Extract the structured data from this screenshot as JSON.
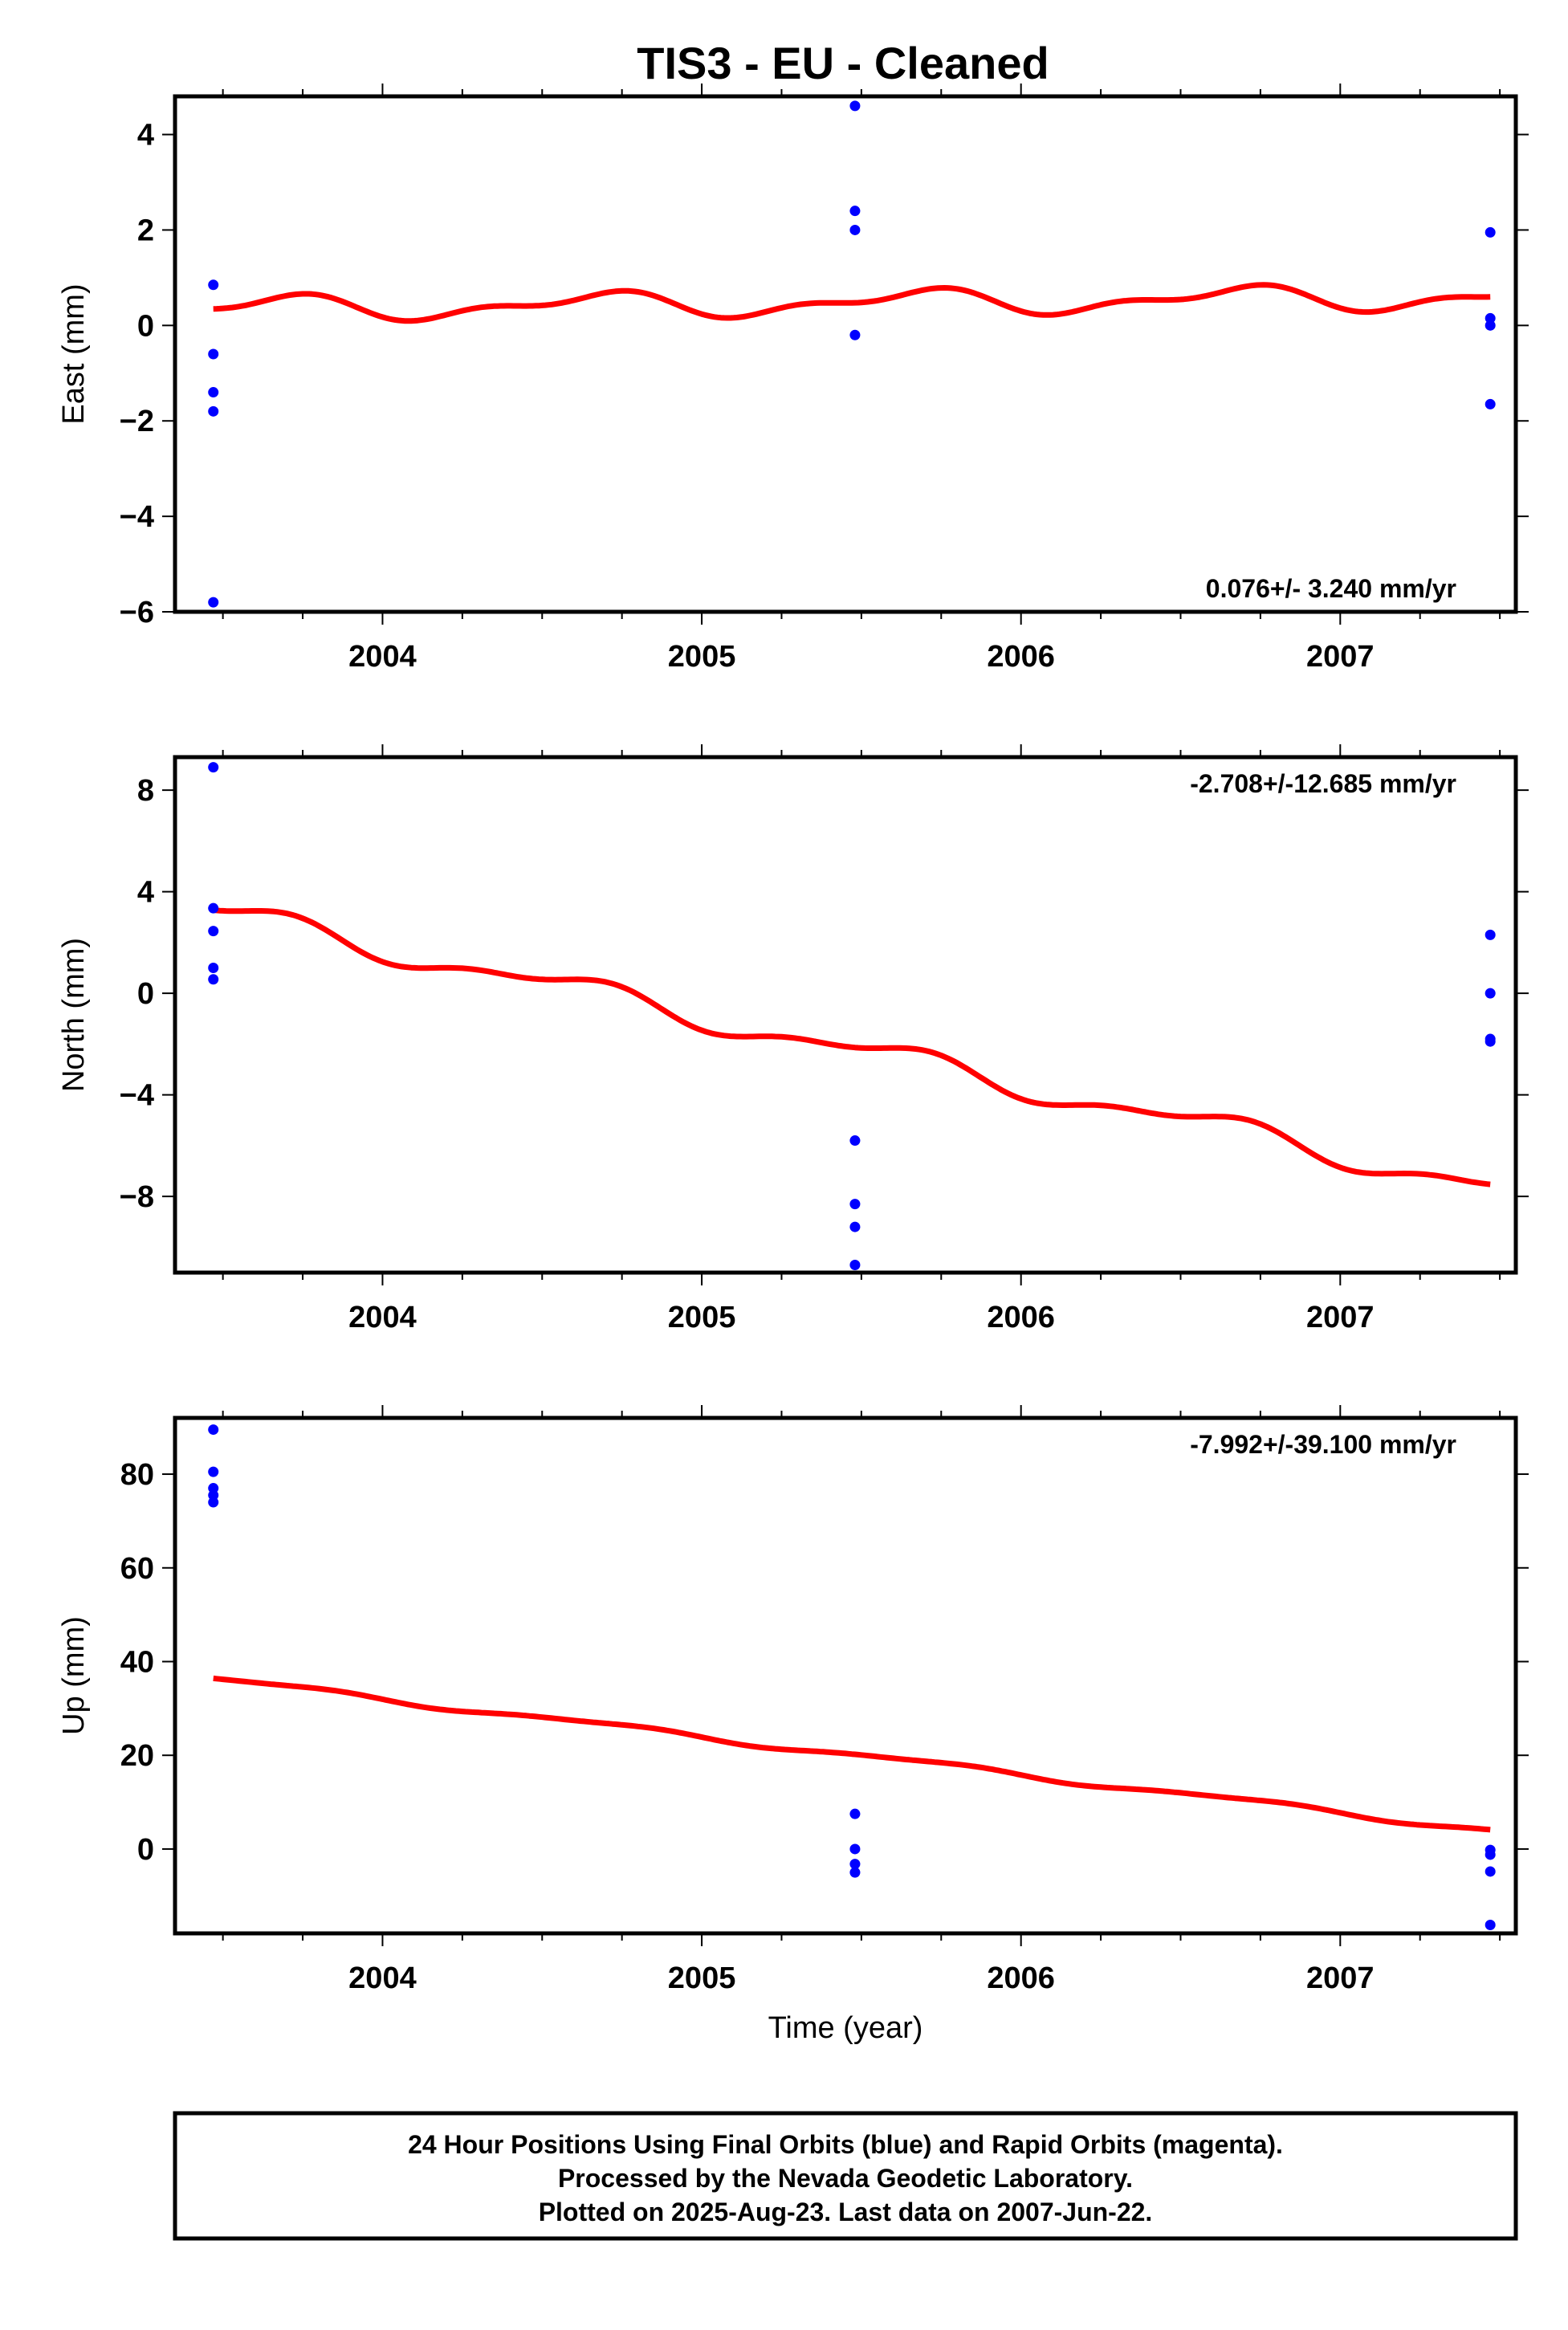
{
  "title": "TIS3  - EU - Cleaned",
  "colors": {
    "final_orbits": "#0000ff",
    "model_fit": "#ff0000",
    "frame": "#000000"
  },
  "chart_data": [
    {
      "type": "scatter",
      "panel": "east",
      "ylabel": "East (mm)",
      "xlabel": "",
      "rate_text": "0.076+/- 3.240 mm/yr",
      "rate_position": "bottom-right",
      "xlim": [
        2003.35,
        2007.55
      ],
      "ylim": [
        -6,
        4.8
      ],
      "yticks": [
        -6,
        -4,
        -2,
        0,
        2,
        4
      ],
      "yticklabels": [
        "−6",
        "−4",
        "−2",
        "0",
        "2",
        "4"
      ],
      "xticks": [
        2004,
        2005,
        2006,
        2007
      ],
      "xticklabels": [
        "2004",
        "2005",
        "2006",
        "2007"
      ],
      "series": [
        {
          "kind": "points",
          "color": "#0000ff",
          "x": [
            2003.47,
            2003.47,
            2003.47,
            2003.47,
            2003.47,
            2005.48,
            2005.48,
            2005.48,
            2005.48,
            2007.47,
            2007.47,
            2007.47,
            2007.47
          ],
          "y": [
            0.85,
            -0.6,
            -1.4,
            -1.8,
            -5.8,
            4.6,
            2.4,
            2.0,
            -0.2,
            1.95,
            0.15,
            0.0,
            -1.65
          ]
        },
        {
          "kind": "model",
          "color": "#ff0000",
          "model": {
            "t0": 2003.47,
            "t1": 2007.47,
            "start": 0.35,
            "end": 0.6,
            "ann": 0.22,
            "semi": 0.12,
            "ph1": 0.05,
            "ph2": 0.3
          }
        }
      ]
    },
    {
      "type": "scatter",
      "panel": "north",
      "ylabel": "North (mm)",
      "xlabel": "",
      "rate_text": "-2.708+/-12.685 mm/yr",
      "rate_position": "top-right",
      "xlim": [
        2003.35,
        2007.55
      ],
      "ylim": [
        -11,
        9.3
      ],
      "yticks": [
        -8,
        -4,
        0,
        4,
        8
      ],
      "yticklabels": [
        "−8",
        "−4",
        "0",
        "4",
        "8"
      ],
      "xticks": [
        2004,
        2005,
        2006,
        2007
      ],
      "xticklabels": [
        "2004",
        "2005",
        "2006",
        "2007"
      ],
      "series": [
        {
          "kind": "points",
          "color": "#0000ff",
          "x": [
            2003.47,
            2003.47,
            2003.47,
            2003.47,
            2003.47,
            2005.48,
            2005.48,
            2005.48,
            2005.48,
            2007.47,
            2007.47,
            2007.47,
            2007.47
          ],
          "y": [
            8.9,
            3.35,
            2.45,
            1.0,
            0.55,
            -5.8,
            -8.3,
            -9.2,
            -10.7,
            2.3,
            0.0,
            -1.8,
            -1.9
          ]
        },
        {
          "kind": "model",
          "color": "#ff0000",
          "model": {
            "t0": 2003.47,
            "t1": 2007.47,
            "start": 3.2,
            "end": -7.6,
            "ann": 0.45,
            "semi": 0.2,
            "ph1": 0.1,
            "ph2": 0.35
          }
        }
      ]
    },
    {
      "type": "scatter",
      "panel": "up",
      "ylabel": "Up (mm)",
      "xlabel": "Time (year)",
      "rate_text": "-7.992+/-39.100 mm/yr",
      "rate_position": "top-right",
      "xlim": [
        2003.35,
        2007.55
      ],
      "ylim": [
        -18,
        92
      ],
      "yticks": [
        0,
        20,
        40,
        60,
        80
      ],
      "yticklabels": [
        "0",
        "20",
        "40",
        "60",
        "80"
      ],
      "xticks": [
        2004,
        2005,
        2006,
        2007
      ],
      "xticklabels": [
        "2004",
        "2005",
        "2006",
        "2007"
      ],
      "series": [
        {
          "kind": "points",
          "color": "#0000ff",
          "x": [
            2003.47,
            2003.47,
            2003.47,
            2003.47,
            2003.47,
            2005.48,
            2005.48,
            2005.48,
            2005.48,
            2007.47,
            2007.47,
            2007.47,
            2007.47
          ],
          "y": [
            89.5,
            80.5,
            77.0,
            75.5,
            74.0,
            7.5,
            0.0,
            -3.2,
            -5.0,
            -0.2,
            -1.2,
            -4.8,
            -16.2
          ]
        },
        {
          "kind": "model",
          "color": "#ff0000",
          "model": {
            "t0": 2003.47,
            "t1": 2007.47,
            "start": 36.3,
            "end": 4.0,
            "ann": 0.6,
            "semi": 0.2,
            "ph1": 0.0,
            "ph2": 0.2
          }
        }
      ]
    }
  ],
  "footer": {
    "line1": "24 Hour Positions Using Final Orbits (blue) and Rapid Orbits (magenta).",
    "line2": "Processed by the Nevada Geodetic Laboratory.",
    "line3": "Plotted on 2025-Aug-23. Last data on 2007-Jun-22."
  }
}
